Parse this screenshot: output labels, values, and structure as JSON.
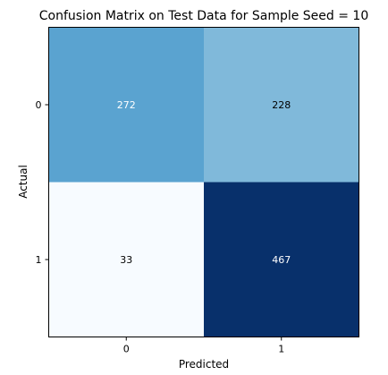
{
  "chart_data": {
    "type": "heatmap",
    "title": "Confusion Matrix on Test Data for Sample Seed = 10",
    "xlabel": "Predicted",
    "ylabel": "Actual",
    "x_categories": [
      "0",
      "1"
    ],
    "y_categories": [
      "0",
      "1"
    ],
    "values": [
      [
        272,
        228
      ],
      [
        33,
        467
      ]
    ],
    "colormap": "Blues",
    "value_range": [
      33,
      467
    ],
    "colors": {
      "low": "#f7fbff",
      "high": "#08306b",
      "text_dark": "#000000",
      "text_light": "#ffffff"
    },
    "grid": false,
    "legend": "none"
  }
}
